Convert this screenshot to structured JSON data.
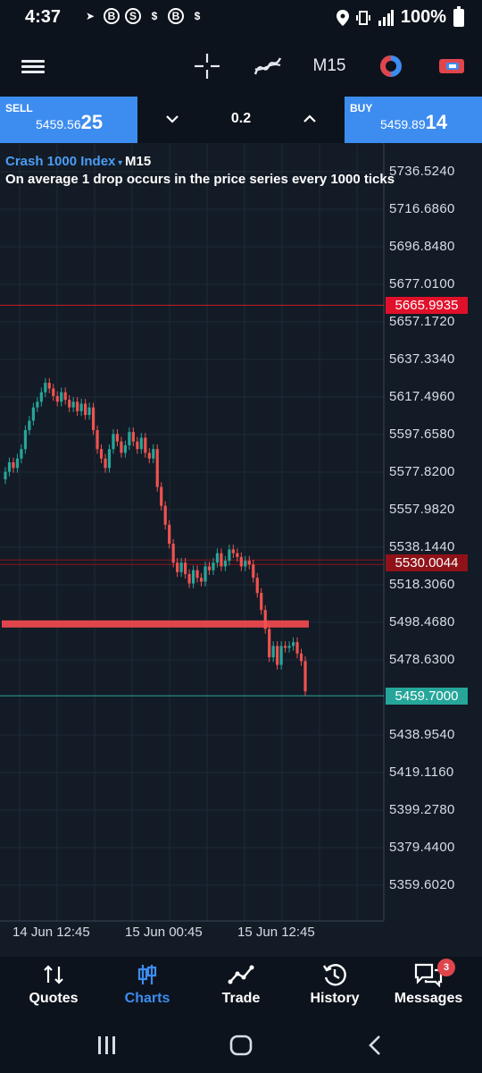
{
  "status_bar": {
    "time": "4:37",
    "battery": "100%",
    "left_icons": [
      "telegram-icon",
      "b-icon",
      "s-icon",
      "dollar-icon",
      "b-icon",
      "dollar-icon"
    ],
    "right_icons": [
      "location-icon",
      "vibrate-icon",
      "signal-icon",
      "battery-icon"
    ]
  },
  "toolbar": {
    "timeframe": "M15"
  },
  "trade": {
    "sell_label": "SELL",
    "sell_price_small": "5459.56",
    "sell_price_big": "25",
    "buy_label": "BUY",
    "buy_price_small": "5459.89",
    "buy_price_big": "14",
    "quantity": "0.2"
  },
  "chart": {
    "symbol": "Crash 1000 Index",
    "timeframe": "M15",
    "description": "On average 1 drop occurs in the price series every 1000 ticks",
    "lines": {
      "red_level": "5665.9935",
      "dark_red_level": "5530.0044",
      "current_price": "5459.7000"
    },
    "colors": {
      "bull": "#26a69a",
      "bear": "#ef5350",
      "red_line": "#e0454c",
      "current_line": "#26a69a"
    }
  },
  "chart_data": {
    "type": "candlestick",
    "yticks": [
      "5736.5240",
      "5716.6860",
      "5696.8480",
      "5677.0100",
      "5657.1720",
      "5637.3340",
      "5617.4960",
      "5597.6580",
      "5577.8200",
      "5557.9820",
      "5538.1440",
      "5518.3060",
      "5498.4680",
      "5478.6300",
      "5459.7000",
      "5438.9540",
      "5419.1160",
      "5399.2780",
      "5379.4400",
      "5359.6020"
    ],
    "xticks": [
      "14 Jun 12:45",
      "15 Jun 00:45",
      "15 Jun 12:45"
    ],
    "ylim": [
      5345,
      5752
    ],
    "horizontal_lines": [
      5665.9935,
      5530.0044,
      5459.7
    ],
    "zone": [
      5496,
      5499.5
    ],
    "close": [
      5578,
      5583,
      5580,
      5585,
      5590,
      5600,
      5605,
      5612,
      5615,
      5620,
      5625,
      5622,
      5618,
      5615,
      5620,
      5616,
      5612,
      5615,
      5610,
      5614,
      5608,
      5612,
      5600,
      5590,
      5585,
      5580,
      5590,
      5598,
      5594,
      5588,
      5592,
      5599,
      5594,
      5590,
      5596,
      5588,
      5585,
      5590,
      5570,
      5560,
      5550,
      5540,
      5530,
      5525,
      5530,
      5524,
      5519,
      5526,
      5522,
      5520,
      5528,
      5526,
      5530,
      5535,
      5528,
      5531,
      5537,
      5535,
      5533,
      5528,
      5531,
      5529,
      5522,
      5514,
      5505,
      5495,
      5480,
      5486,
      5476,
      5486,
      5485,
      5486,
      5488,
      5482,
      5478,
      5462
    ]
  },
  "nav": {
    "items": [
      {
        "label": "Quotes"
      },
      {
        "label": "Charts"
      },
      {
        "label": "Trade"
      },
      {
        "label": "History"
      },
      {
        "label": "Messages"
      }
    ],
    "messages_badge": "3"
  }
}
